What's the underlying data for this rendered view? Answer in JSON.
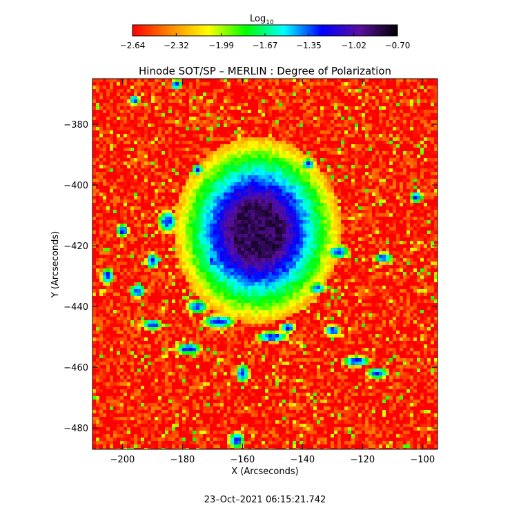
{
  "chart_data": {
    "type": "heatmap",
    "title": "Hinode SOT/SP – MERLIN : Degree of Polarization",
    "xlabel": "X (Arcseconds)",
    "ylabel": "Y (Arcseconds)",
    "xlim": [
      -210,
      -95
    ],
    "ylim": [
      -487,
      -365
    ],
    "x_ticks": [
      -200,
      -180,
      -160,
      -140,
      -120,
      -100
    ],
    "x_tick_labels": [
      "−200",
      "−180",
      "−160",
      "−140",
      "−120",
      "−100"
    ],
    "y_ticks": [
      -380,
      -400,
      -420,
      -440,
      -460,
      -480
    ],
    "y_tick_labels": [
      "−380",
      "−400",
      "−420",
      "−440",
      "−460",
      "−480"
    ],
    "colorbar": {
      "label": "Log",
      "label_subscript": "10",
      "range": [
        -2.64,
        -0.7
      ],
      "ticks": [
        -2.64,
        -2.32,
        -1.99,
        -1.67,
        -1.35,
        -1.02,
        -0.7
      ],
      "tick_labels": [
        "−2.64",
        "−2.32",
        "−1.99",
        "−1.67",
        "−1.35",
        "−1.02",
        "−0.70"
      ],
      "colormap": [
        "#ff0000",
        "#ff8800",
        "#ffff00",
        "#00ff00",
        "#00ffff",
        "#0000ff",
        "#5a0fa0",
        "#000000"
      ]
    },
    "features": {
      "sunspot_center": [
        -155,
        -415
      ],
      "umbra_value": -0.85,
      "background_value": -2.6
    },
    "timestamp": "23–Oct–2021 06:15:21.742"
  }
}
